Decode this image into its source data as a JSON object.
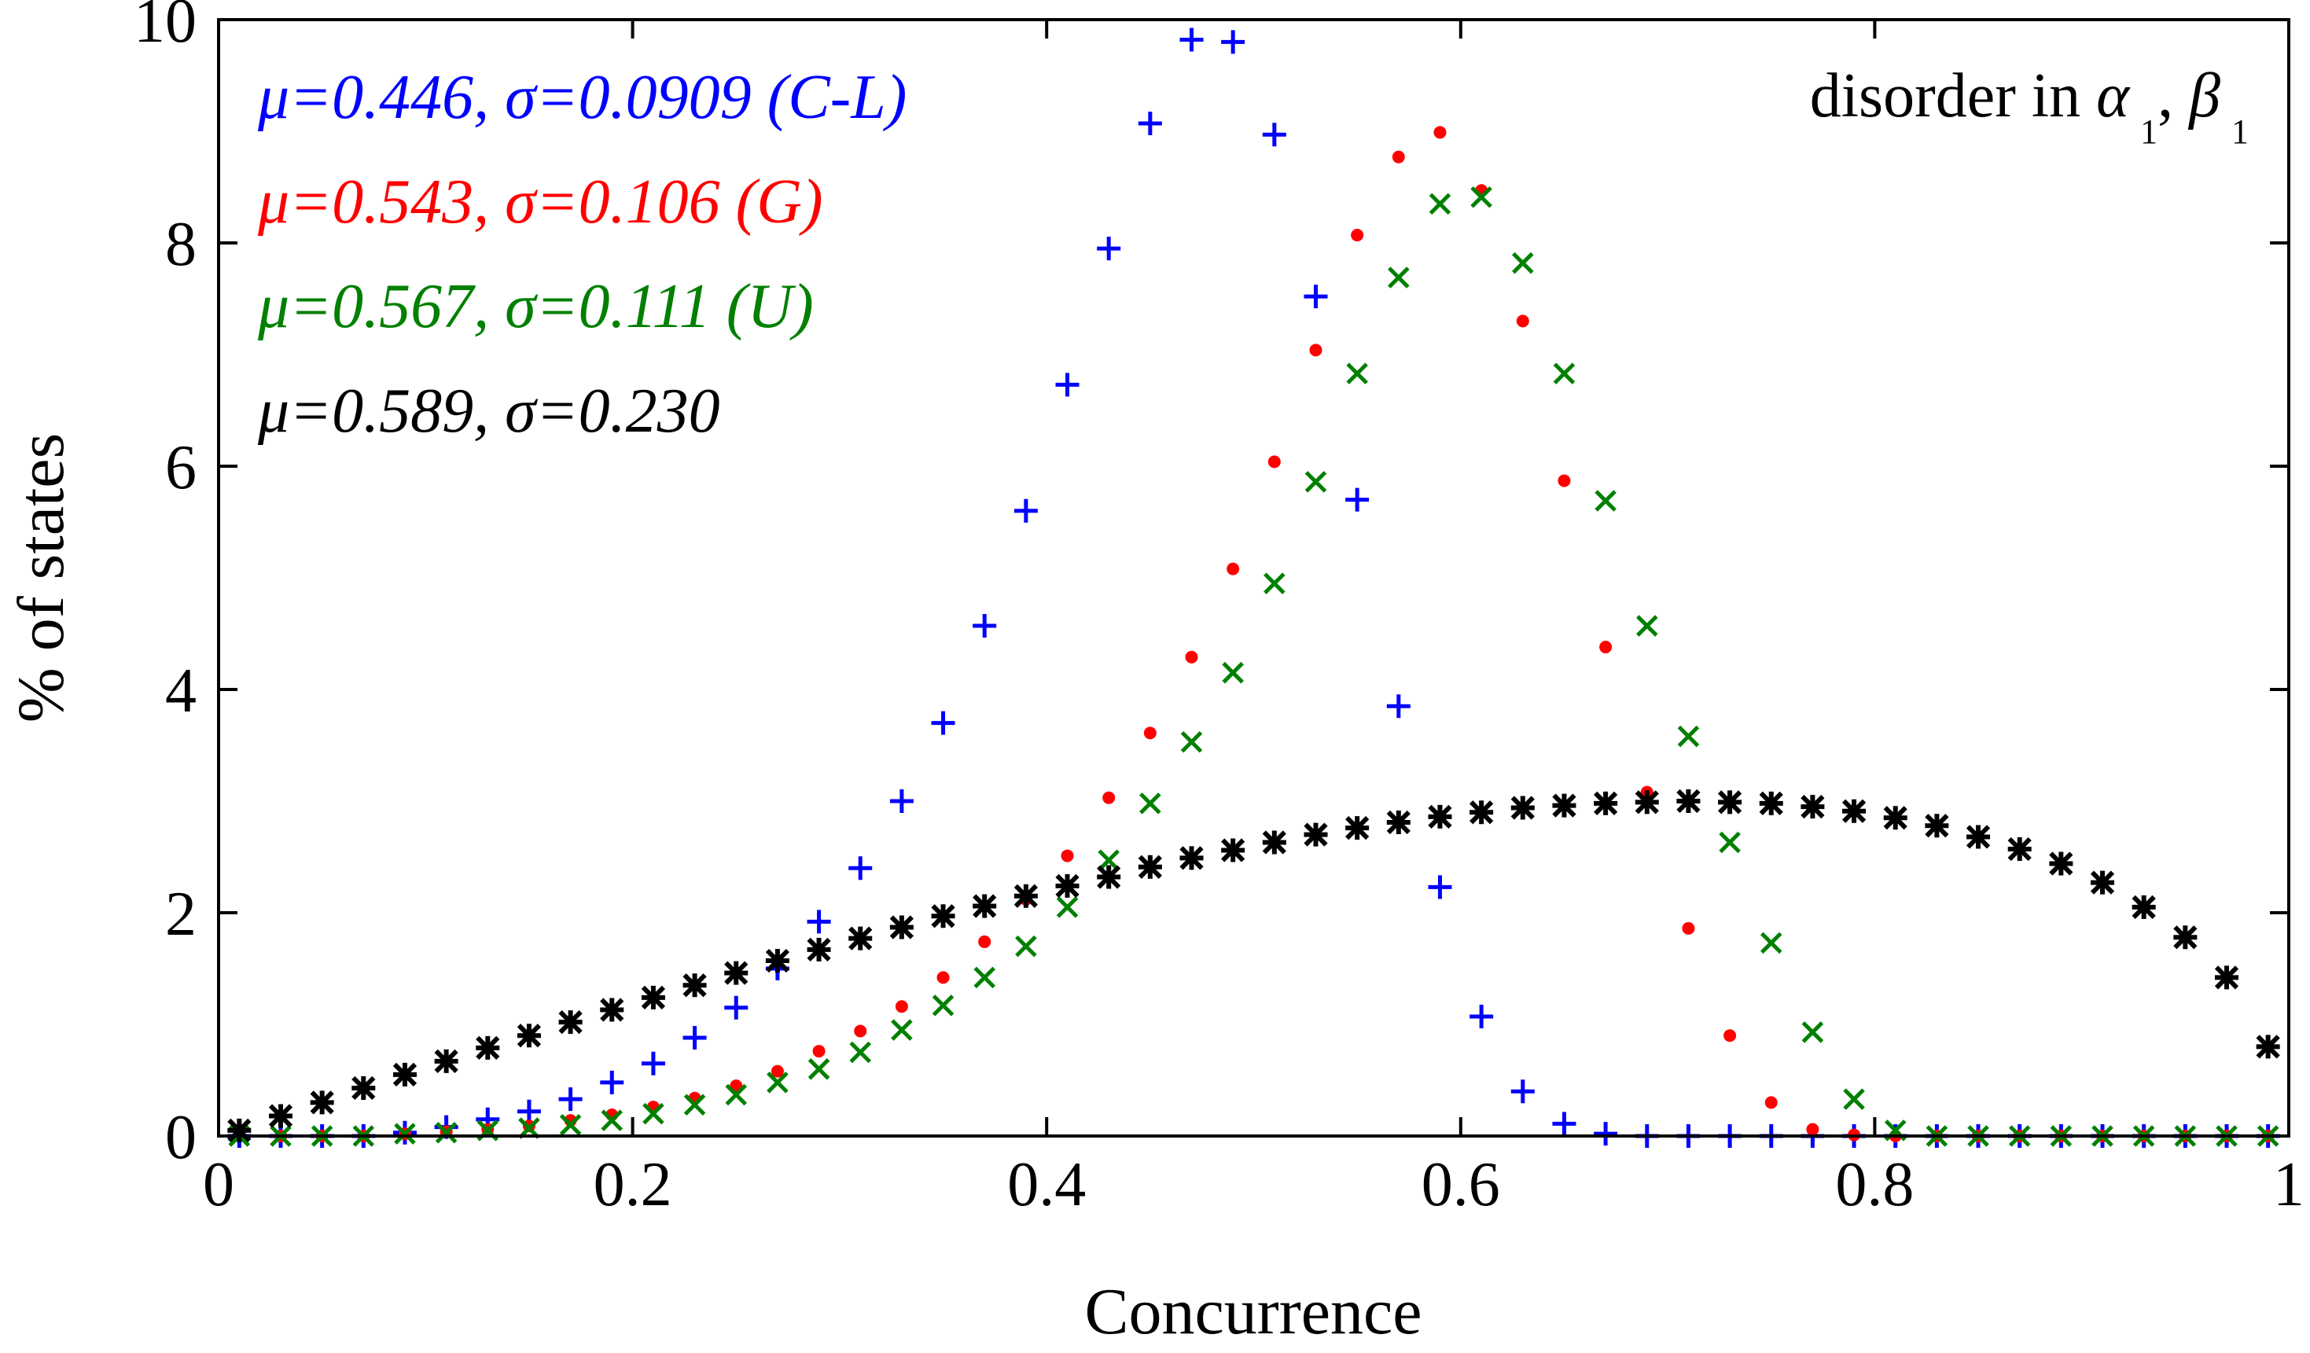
{
  "chart_data": {
    "type": "scatter",
    "title": "",
    "xlabel": "Concurrence",
    "ylabel": "% of states",
    "xlim": [
      0,
      1
    ],
    "ylim": [
      0,
      10
    ],
    "xticks": [
      0,
      0.2,
      0.4,
      0.6,
      0.8,
      1
    ],
    "xtick_labels": [
      "0",
      "0.2",
      "0.4",
      "0.6",
      "0.8",
      "1"
    ],
    "yticks": [
      0,
      2,
      4,
      6,
      8,
      10
    ],
    "ytick_labels": [
      "0",
      "2",
      "4",
      "6",
      "8",
      "10"
    ],
    "grid": false,
    "annotation": {
      "prefix": "disorder in ",
      "sym1": "α",
      "sub1": "1",
      "sep": ", ",
      "sym2": "β",
      "sub2": "1"
    },
    "legend_position": "top-left",
    "x": [
      0.01,
      0.03,
      0.05,
      0.07,
      0.09,
      0.11,
      0.13,
      0.15,
      0.17,
      0.19,
      0.21,
      0.23,
      0.25,
      0.27,
      0.29,
      0.31,
      0.33,
      0.35,
      0.37,
      0.39,
      0.41,
      0.43,
      0.45,
      0.47,
      0.49,
      0.51,
      0.53,
      0.55,
      0.57,
      0.59,
      0.61,
      0.63,
      0.65,
      0.67,
      0.69,
      0.71,
      0.73,
      0.75,
      0.77,
      0.79,
      0.81,
      0.83,
      0.85,
      0.87,
      0.89,
      0.91,
      0.93,
      0.95,
      0.97,
      0.99
    ],
    "series": [
      {
        "name": "C-L",
        "legend": "μ=0.446, σ=0.0909 (C-L)",
        "marker": "plus",
        "color": "#0000ff",
        "values": [
          0.0,
          0.0,
          0.0,
          0.0,
          0.03,
          0.08,
          0.15,
          0.22,
          0.33,
          0.48,
          0.65,
          0.88,
          1.15,
          1.5,
          1.92,
          2.4,
          3.0,
          3.7,
          4.57,
          5.6,
          6.73,
          7.95,
          9.07,
          9.82,
          9.8,
          8.97,
          7.52,
          5.7,
          3.85,
          2.23,
          1.07,
          0.4,
          0.11,
          0.02,
          0.0,
          0.0,
          0.0,
          0.0,
          0.0,
          0.0,
          0.0,
          0.0,
          0.0,
          0.0,
          0.0,
          0.0,
          0.0,
          0.0,
          0.0,
          0.0
        ]
      },
      {
        "name": "G",
        "legend": "μ=0.543, σ=0.106 (G)",
        "marker": "dot",
        "color": "#ff0000",
        "values": [
          0.0,
          0.0,
          0.0,
          0.0,
          0.02,
          0.04,
          0.06,
          0.09,
          0.14,
          0.19,
          0.26,
          0.34,
          0.45,
          0.58,
          0.76,
          0.94,
          1.16,
          1.42,
          1.74,
          2.12,
          2.51,
          3.03,
          3.61,
          4.29,
          5.08,
          6.04,
          7.04,
          8.07,
          8.77,
          8.99,
          8.47,
          7.3,
          5.87,
          4.38,
          3.08,
          1.86,
          0.9,
          0.3,
          0.06,
          0.01,
          0.0,
          0.0,
          0.0,
          0.0,
          0.0,
          0.0,
          0.0,
          0.0,
          0.0,
          0.0
        ]
      },
      {
        "name": "U",
        "legend": "μ=0.567, σ=0.111 (U)",
        "marker": "cross",
        "color": "#008000",
        "values": [
          0.0,
          0.0,
          0.0,
          0.0,
          0.02,
          0.03,
          0.05,
          0.07,
          0.1,
          0.14,
          0.2,
          0.28,
          0.37,
          0.48,
          0.6,
          0.75,
          0.95,
          1.17,
          1.42,
          1.7,
          2.05,
          2.47,
          2.98,
          3.53,
          4.15,
          4.95,
          5.86,
          6.83,
          7.69,
          8.35,
          8.41,
          7.82,
          6.83,
          5.69,
          4.57,
          3.58,
          2.63,
          1.73,
          0.93,
          0.33,
          0.05,
          0.0,
          0.0,
          0.0,
          0.0,
          0.0,
          0.0,
          0.0,
          0.0,
          0.0
        ]
      },
      {
        "name": "",
        "legend": "μ=0.589, σ=0.230",
        "marker": "star",
        "color": "#000000",
        "values": [
          0.05,
          0.18,
          0.3,
          0.43,
          0.55,
          0.67,
          0.79,
          0.9,
          1.02,
          1.13,
          1.24,
          1.35,
          1.46,
          1.57,
          1.67,
          1.77,
          1.87,
          1.97,
          2.06,
          2.15,
          2.24,
          2.32,
          2.41,
          2.49,
          2.56,
          2.63,
          2.7,
          2.76,
          2.81,
          2.86,
          2.9,
          2.94,
          2.96,
          2.98,
          2.99,
          3.0,
          2.99,
          2.98,
          2.95,
          2.91,
          2.85,
          2.78,
          2.68,
          2.57,
          2.44,
          2.27,
          2.05,
          1.78,
          1.42,
          0.8
        ]
      }
    ]
  }
}
